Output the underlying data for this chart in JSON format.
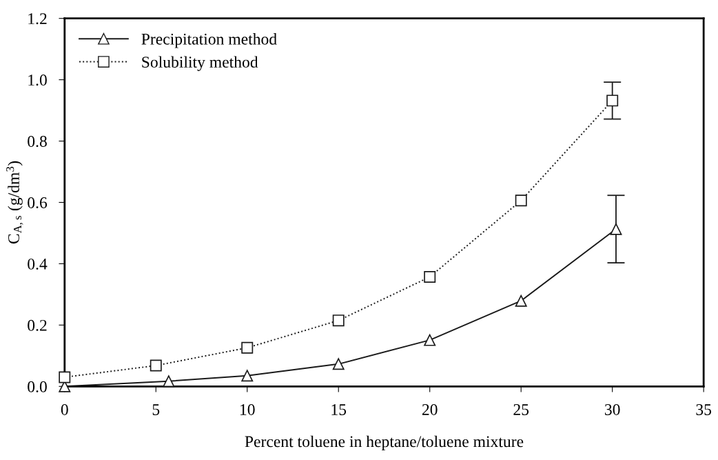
{
  "chart_data": {
    "type": "line",
    "xlabel": "Percent toluene in heptane/toluene mixture",
    "ylabel": "C$_{A,s}$ (g/dm$^{3}$)",
    "xlim": [
      0,
      35
    ],
    "xticks": [
      0,
      5,
      10,
      15,
      20,
      25,
      30,
      35
    ],
    "ylim": [
      0,
      1.2
    ],
    "yticks": [
      {
        "value": 0,
        "label": "0.0"
      },
      0.2,
      0.4,
      0.6,
      0.8,
      {
        "value": 1,
        "label": "1.0"
      },
      1.2
    ],
    "grid": false,
    "legend": "top left",
    "series": [
      {
        "name": "Precipitation method",
        "color": "#1a1a1a",
        "marker": "triangle",
        "line_style": "solid",
        "x": [
          0,
          5.7,
          10,
          15,
          20,
          25,
          30.2
        ],
        "values": [
          0.0,
          0.017,
          0.035,
          0.073,
          0.151,
          0.279,
          0.513
        ],
        "errors": [
          null,
          null,
          null,
          null,
          null,
          null,
          0.11
        ]
      },
      {
        "name": "Solubility method",
        "color": "#1a1a1a",
        "marker": "square",
        "line_style": "dotted",
        "x": [
          0,
          5,
          10,
          15,
          20,
          25,
          30
        ],
        "values": [
          0.03,
          0.068,
          0.126,
          0.215,
          0.357,
          0.606,
          0.932
        ],
        "errors": [
          null,
          null,
          null,
          null,
          null,
          null,
          0.06
        ]
      }
    ]
  }
}
